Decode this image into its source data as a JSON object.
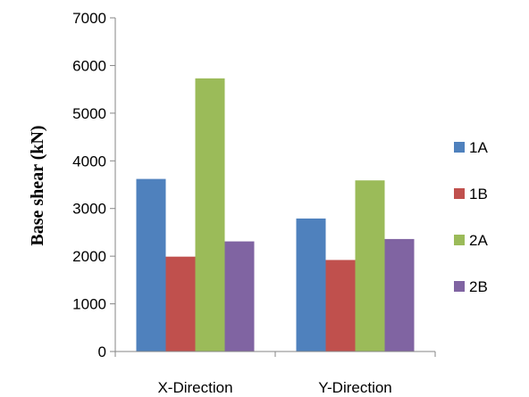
{
  "chart_data": {
    "type": "bar",
    "categories": [
      "X-Direction",
      "Y-Direction"
    ],
    "series": [
      {
        "name": "1A",
        "values": [
          3620,
          2790
        ],
        "color": "#4F81BD"
      },
      {
        "name": "1B",
        "values": [
          1990,
          1920
        ],
        "color": "#C0504D"
      },
      {
        "name": "2A",
        "values": [
          5730,
          3590
        ],
        "color": "#9BBB59"
      },
      {
        "name": "2B",
        "values": [
          2310,
          2360
        ],
        "color": "#8064A2"
      }
    ],
    "ylabel": "Base shear (kN)",
    "ylim": [
      0,
      7000
    ],
    "yticks": [
      0,
      1000,
      2000,
      3000,
      4000,
      5000,
      6000,
      7000
    ],
    "grid": false,
    "legend": "right"
  }
}
